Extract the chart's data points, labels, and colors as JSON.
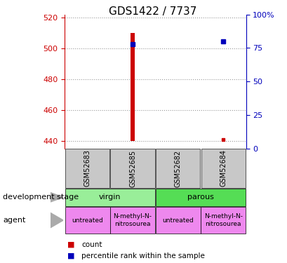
{
  "title": "GDS1422 / 7737",
  "samples": [
    "GSM52683",
    "GSM52685",
    "GSM52682",
    "GSM52684"
  ],
  "left_ylim": [
    435,
    522
  ],
  "left_yticks": [
    440,
    460,
    480,
    500,
    520
  ],
  "right_ylim": [
    0,
    100
  ],
  "right_yticks": [
    0,
    25,
    50,
    75,
    100
  ],
  "right_yticklabels": [
    "0",
    "25",
    "50",
    "75",
    "100%"
  ],
  "count_values": [
    null,
    510,
    null,
    null
  ],
  "count_base": 440,
  "count_small": [
    null,
    null,
    null,
    441
  ],
  "percentile_values": [
    null,
    78,
    null,
    80
  ],
  "development_stage": [
    {
      "label": "virgin",
      "span": [
        0,
        2
      ],
      "color": "#99EE99"
    },
    {
      "label": "parous",
      "span": [
        2,
        4
      ],
      "color": "#55DD55"
    }
  ],
  "agent": [
    {
      "label": "untreated",
      "span": [
        0,
        1
      ],
      "color": "#EE88EE"
    },
    {
      "label": "N-methyl-N-\nnitrosourea",
      "span": [
        1,
        2
      ],
      "color": "#EE88EE"
    },
    {
      "label": "untreated",
      "span": [
        2,
        3
      ],
      "color": "#EE88EE"
    },
    {
      "label": "N-methyl-N-\nnitrosourea",
      "span": [
        3,
        4
      ],
      "color": "#EE88EE"
    }
  ],
  "bar_color": "#CC0000",
  "dot_color": "#0000BB",
  "grid_color": "#999999",
  "left_tick_color": "#CC0000",
  "right_tick_color": "#0000BB",
  "sample_box_color": "#C8C8C8",
  "sample_box_edge": "#555555",
  "title_fontsize": 11,
  "axis_fontsize": 8,
  "label_fontsize": 8,
  "sample_fontsize": 7,
  "stage_fontsize": 8,
  "agent_fontsize": 6.5,
  "legend_fontsize": 7.5
}
